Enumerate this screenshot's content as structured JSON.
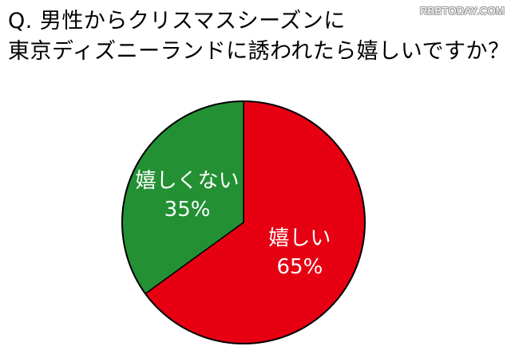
{
  "header": {
    "title_line1": "Q. 男性からクリスマスシーズンに",
    "title_line2": "東京ディズニーランドに誘われたら嬉しいですか？"
  },
  "watermark": "RBBTODAY.COM",
  "colors": {
    "slice_1": "#e60012",
    "slice_2": "#239034",
    "outline": "#000000",
    "label_text": "#ffffff"
  },
  "chart_data": {
    "type": "pie",
    "title": "Q. 男性からクリスマスシーズンに東京ディズニーランドに誘われたら嬉しいですか？",
    "slices": [
      {
        "label": "嬉しい",
        "value": 65,
        "value_label": "65%",
        "color": "#e60012"
      },
      {
        "label": "嬉しくない",
        "value": 35,
        "value_label": "35%",
        "color": "#239034"
      }
    ],
    "start_angle": "12 o'clock",
    "direction": "clockwise",
    "legend": "none"
  }
}
